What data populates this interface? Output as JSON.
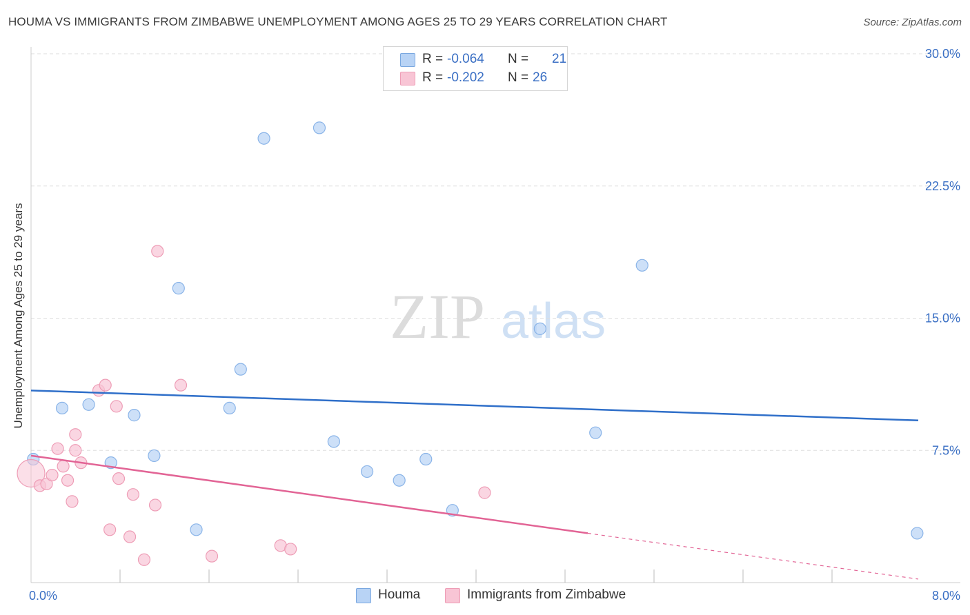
{
  "title": "HOUMA VS IMMIGRANTS FROM ZIMBABWE UNEMPLOYMENT AMONG AGES 25 TO 29 YEARS CORRELATION CHART",
  "source": "Source: ZipAtlas.com",
  "watermark": {
    "zip": "ZIP",
    "atlas": "atlas"
  },
  "legend": {
    "r_label": "R =",
    "n_label": "N =",
    "rows": [
      {
        "r": "-0.064",
        "n": "21"
      },
      {
        "r": "-0.202",
        "n": "26"
      }
    ]
  },
  "colors": {
    "houma_fill": "#b8d3f5",
    "houma_stroke": "#8ab4e8",
    "houma_line": "#2f6fc9",
    "zim_fill": "#f8c5d5",
    "zim_stroke": "#ee9db6",
    "zim_line": "#e26495",
    "tick_label": "#3a6fc4",
    "grid": "#dddddd"
  },
  "chart_data": {
    "type": "scatter",
    "title": "HOUMA VS IMMIGRANTS FROM ZIMBABWE UNEMPLOYMENT AMONG AGES 25 TO 29 YEARS CORRELATION CHART",
    "xlabel": "",
    "ylabel": "Unemployment Among Ages 25 to 29 years",
    "xlim": [
      0,
      8.0
    ],
    "ylim": [
      0,
      30.0
    ],
    "x_tick_labels": [
      "0.0%",
      "8.0%"
    ],
    "y_ticks": [
      7.5,
      15.0,
      22.5,
      30.0
    ],
    "y_tick_labels": [
      "7.5%",
      "15.0%",
      "22.5%",
      "30.0%"
    ],
    "series": [
      {
        "name": "Houma",
        "r": -0.064,
        "n": 21,
        "points": [
          [
            0.02,
            7.0
          ],
          [
            0.28,
            9.9
          ],
          [
            0.52,
            10.1
          ],
          [
            0.72,
            6.8
          ],
          [
            0.93,
            9.5
          ],
          [
            1.11,
            7.2
          ],
          [
            1.33,
            16.7
          ],
          [
            1.49,
            3.0
          ],
          [
            1.79,
            9.9
          ],
          [
            1.89,
            12.1
          ],
          [
            2.1,
            25.2
          ],
          [
            2.6,
            25.8
          ],
          [
            2.73,
            8.0
          ],
          [
            3.03,
            6.3
          ],
          [
            3.32,
            5.8
          ],
          [
            3.56,
            7.0
          ],
          [
            3.8,
            4.1
          ],
          [
            4.59,
            14.4
          ],
          [
            5.09,
            8.5
          ],
          [
            5.51,
            18.0
          ],
          [
            7.99,
            2.8
          ]
        ],
        "trend": {
          "x0": 0.0,
          "y0": 10.9,
          "x1": 8.0,
          "y1": 9.2
        }
      },
      {
        "name": "Immigrants from Zimbabwe",
        "r": -0.202,
        "n": 26,
        "points": [
          [
            0.0,
            6.2
          ],
          [
            0.08,
            5.5
          ],
          [
            0.14,
            5.6
          ],
          [
            0.19,
            6.1
          ],
          [
            0.24,
            7.6
          ],
          [
            0.29,
            6.6
          ],
          [
            0.33,
            5.8
          ],
          [
            0.37,
            4.6
          ],
          [
            0.4,
            8.4
          ],
          [
            0.4,
            7.5
          ],
          [
            0.45,
            6.8
          ],
          [
            0.61,
            10.9
          ],
          [
            0.67,
            11.2
          ],
          [
            0.71,
            3.0
          ],
          [
            0.77,
            10.0
          ],
          [
            0.79,
            5.9
          ],
          [
            0.89,
            2.6
          ],
          [
            0.92,
            5.0
          ],
          [
            1.02,
            1.3
          ],
          [
            1.12,
            4.4
          ],
          [
            1.14,
            18.8
          ],
          [
            1.35,
            11.2
          ],
          [
            1.63,
            1.5
          ],
          [
            2.25,
            2.1
          ],
          [
            2.34,
            1.9
          ],
          [
            4.09,
            5.1
          ]
        ],
        "trend": {
          "x0": 0.0,
          "y0": 7.2,
          "x1": 5.02,
          "y1": 2.8
        },
        "trend_dashed_extension": {
          "x0": 5.02,
          "y0": 2.8,
          "x1": 8.0,
          "y1": 0.2
        }
      }
    ],
    "legend_position": "top-center",
    "grid": true
  }
}
